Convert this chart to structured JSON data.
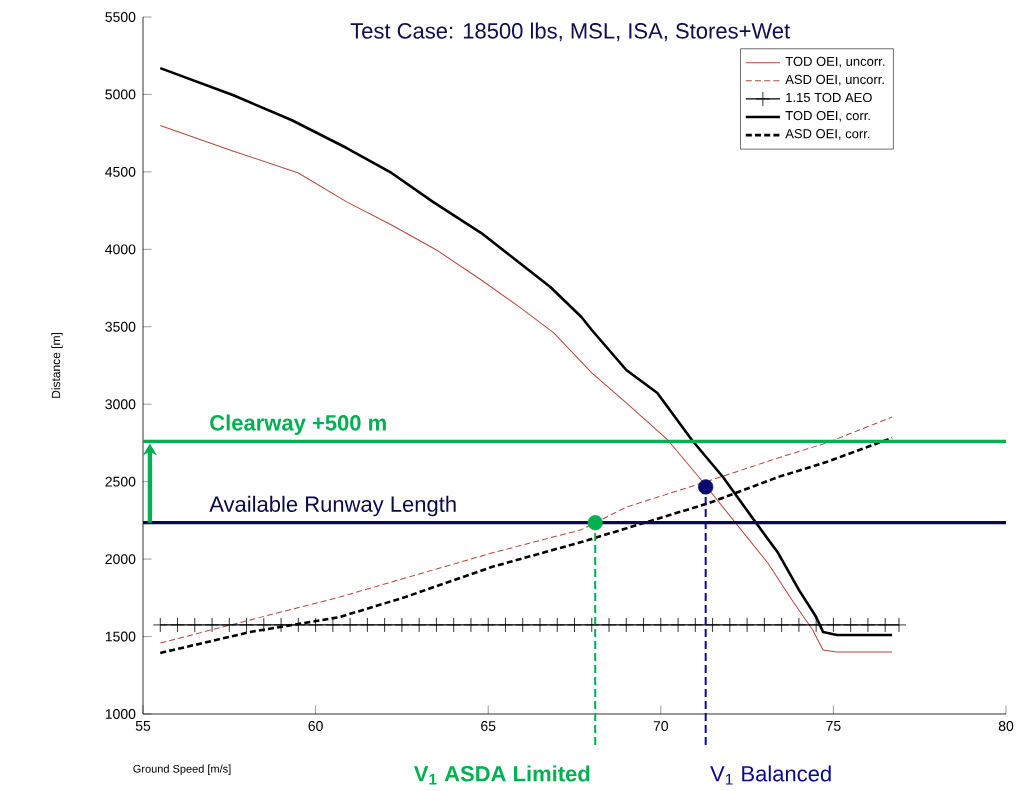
{
  "chart_data": {
    "type": "line",
    "title": "Test Case: 18500 lbs, MSL, ISA, Stores+Wet",
    "xlabel": "Ground Speed [m/s]",
    "ylabel": "Distance [m]",
    "xlim": [
      55,
      80
    ],
    "xticks": [
      55,
      60,
      65,
      70,
      75,
      80
    ],
    "ylim": [
      1000,
      5500
    ],
    "yticks": [
      1000,
      1500,
      2000,
      2500,
      3000,
      3500,
      4000,
      4500,
      5000,
      5500
    ],
    "legend": "top right",
    "grid": false,
    "series": [
      {
        "name": "TOD OEI, uncorr.",
        "color": "#b4483c",
        "line_style": "solid",
        "x": [
          55.5,
          57.6,
          59.5,
          60.9,
          62.2,
          63.5,
          64.8,
          65.9,
          66.9,
          68.0,
          69.0,
          70.2,
          71.1,
          72.1,
          73.1,
          73.8,
          74.4,
          74.7,
          75.1,
          76.7
        ],
        "values": [
          4800,
          4635,
          4493,
          4306,
          4157,
          3996,
          3802,
          3628,
          3460,
          3202,
          3008,
          2769,
          2530,
          2252,
          1975,
          1736,
          1542,
          1413,
          1400,
          1400
        ]
      },
      {
        "name": "ASD OEI, uncorr.",
        "color": "#b4483c",
        "line_style": "dashed",
        "x": [
          55.5,
          58.1,
          60.7,
          62.6,
          65.1,
          67.7,
          69.0,
          71.2,
          73.4,
          74.8,
          76.7
        ],
        "values": [
          1458,
          1607,
          1755,
          1878,
          2039,
          2190,
          2336,
          2491,
          2653,
          2750,
          2917
        ]
      },
      {
        "name": "1.15 TOD AEO",
        "color": "#000000",
        "line_style": "solid",
        "marker": "cross",
        "x": [
          55.5,
          56,
          56.5,
          57,
          57.5,
          58,
          58.5,
          59,
          59.5,
          60,
          60.5,
          61,
          61.5,
          62,
          62.5,
          63,
          63.5,
          64,
          64.5,
          65,
          65.5,
          66,
          66.5,
          67,
          67.5,
          68,
          68.5,
          69,
          69.5,
          70,
          70.5,
          71,
          71.5,
          72,
          72.5,
          73,
          73.5,
          74,
          74.5,
          75,
          75.5,
          76,
          76.5,
          76.9
        ],
        "values": [
          1575,
          1575,
          1575,
          1575,
          1575,
          1575,
          1575,
          1575,
          1575,
          1575,
          1575,
          1575,
          1575,
          1575,
          1575,
          1575,
          1575,
          1575,
          1575,
          1575,
          1575,
          1575,
          1575,
          1575,
          1575,
          1575,
          1575,
          1575,
          1575,
          1575,
          1575,
          1575,
          1575,
          1575,
          1575,
          1575,
          1575,
          1575,
          1575,
          1575,
          1575,
          1575,
          1575,
          1575
        ]
      },
      {
        "name": "TOD OEI, corr.",
        "color": "#000000",
        "line_style": "solid",
        "x": [
          55.5,
          57.6,
          59.3,
          60.9,
          62.2,
          63.4,
          64.8,
          65.8,
          66.8,
          67.7,
          68.0,
          69.0,
          69.9,
          70.9,
          71.8,
          72.7,
          73.4,
          74.0,
          74.5,
          74.7,
          75.1,
          76.7
        ],
        "values": [
          5170,
          4996,
          4835,
          4654,
          4493,
          4306,
          4105,
          3931,
          3757,
          3563,
          3479,
          3221,
          3072,
          2769,
          2530,
          2252,
          2039,
          1801,
          1626,
          1529,
          1510,
          1510
        ]
      },
      {
        "name": "ASD OEI, corr.",
        "color": "#000000",
        "line_style": "dashed",
        "x": [
          55.5,
          58.1,
          60.7,
          62.6,
          65.1,
          67.7,
          69.5,
          71.4,
          73.4,
          74.8,
          76.7
        ],
        "values": [
          1394,
          1529,
          1626,
          1755,
          1949,
          2110,
          2233,
          2362,
          2530,
          2627,
          2782
        ]
      },
      {
        "type": "scatter",
        "marker": "circle",
        "x": [
          68.1,
          71.3
        ],
        "values": [
          2235,
          2466
        ],
        "colors": [
          "#00b050",
          "#0a0a6e"
        ]
      }
    ],
    "ref_lines": [
      {
        "axis": "y",
        "value": 2760,
        "label": "Clearway +500 m",
        "color": "#00b050",
        "line_style": "solid"
      },
      {
        "axis": "y",
        "value": 2235,
        "label": "Available Runway Length",
        "color": "#0a0a46",
        "line_style": "solid"
      },
      {
        "axis": "x",
        "value": 68.1,
        "label": "V$_{1}$ ASDA Limited",
        "color": "#00b050",
        "line_style": "dashed"
      },
      {
        "axis": "x",
        "value": 71.3,
        "label": "V$_{1}$ Balanced",
        "color": "#0a0a8c",
        "line_style": "dashed"
      }
    ]
  }
}
